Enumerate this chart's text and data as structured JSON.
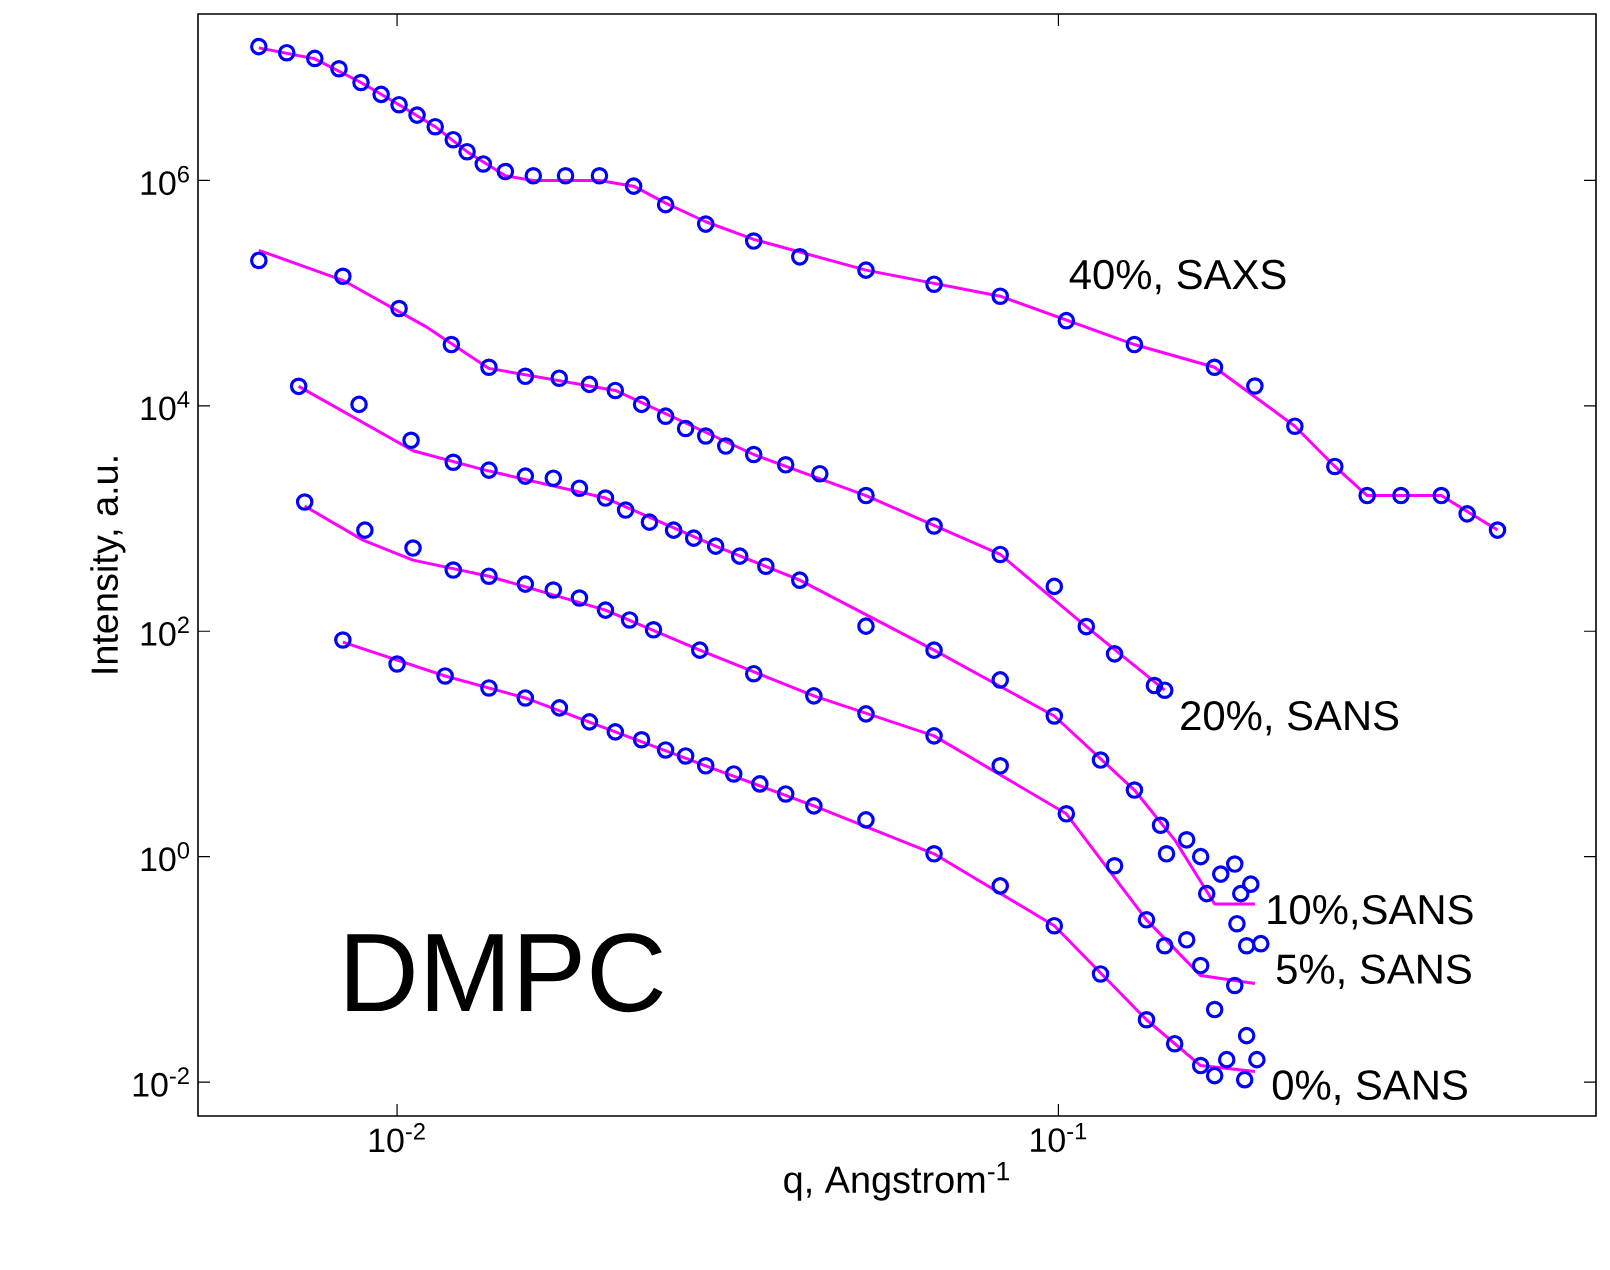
{
  "chart_data": {
    "type": "scatter",
    "xlabel": "q, Angstrom$^{-1}$",
    "ylabel": "Intensity, a.u.",
    "log": "xy",
    "marker": "circle",
    "xlim": [
      0.005,
      0.65
    ],
    "ylim": [
      0.005,
      30000000
    ],
    "xticks": [
      {
        "value": 0.01,
        "label": "10$^{-2}$"
      },
      {
        "value": 0.1,
        "label": "10$^{-1}$"
      }
    ],
    "yticks": [
      {
        "value": 0.01,
        "label": "10$^{-2}$"
      },
      {
        "value": 1,
        "label": "10$^{0}$"
      },
      {
        "value": 100,
        "label": "10$^{2}$"
      },
      {
        "value": 10000,
        "label": "10$^{4}$"
      },
      {
        "value": 1000000,
        "label": "10$^{6}$"
      }
    ],
    "series": [
      {
        "name": "40%, SAXS",
        "color": "#0000ff",
        "x": [
          0.00618,
          0.00681,
          0.00751,
          0.00817,
          0.00882,
          0.00946,
          0.01007,
          0.01072,
          0.01142,
          0.01216,
          0.01276,
          0.0135,
          0.01458,
          0.01607,
          0.01798,
          0.02023,
          0.02279,
          0.02547,
          0.02929,
          0.03462,
          0.04064,
          0.05117,
          0.06486,
          0.08166,
          0.1028,
          0.1303,
          0.1722,
          0.1982,
          0.2278,
          0.2618,
          0.293,
          0.3296,
          0.3793,
          0.415,
          0.4613
        ],
        "values": [
          15400000,
          13600000,
          12100000,
          9800000,
          7400000,
          5800000,
          4700000,
          3800000,
          3000000,
          2300000,
          1800000,
          1400000,
          1200000,
          1100000,
          1100000,
          1100000,
          890000,
          610000,
          410000,
          290000,
          210000,
          160000,
          120000,
          94000,
          57000,
          35000,
          22000,
          15000,
          6600,
          2900,
          1600,
          1600,
          1600,
          1100,
          790
        ]
      },
      {
        "type": "line",
        "marker": "none",
        "color": "#ff00ff",
        "x": [
          0.00618,
          0.00751,
          0.00882,
          0.01007,
          0.01142,
          0.01276,
          0.01458,
          0.01607,
          0.02023,
          0.02279,
          0.02547,
          0.02929,
          0.03462,
          0.05117,
          0.08166,
          0.1303,
          0.1722,
          0.2278,
          0.2618,
          0.293,
          0.3296,
          0.3793,
          0.4613
        ],
        "values": [
          15000000,
          12000000,
          7400000,
          4700000,
          3000000,
          1800000,
          1100000,
          1000000,
          1000000,
          890000,
          630000,
          430000,
          300000,
          160000,
          94000,
          35000,
          22000,
          6600,
          2900,
          1600,
          1600,
          1600,
          790
        ]
      },
      {
        "name": "20%, SANS",
        "color": "#0000ff",
        "x": [
          0.00618,
          0.00828,
          0.01007,
          0.01208,
          0.01377,
          0.01563,
          0.01759,
          0.01954,
          0.02138,
          0.02343,
          0.02547,
          0.02731,
          0.02929,
          0.03141,
          0.03462,
          0.0387,
          0.04357,
          0.05117,
          0.06486,
          0.08166,
          0.09858,
          0.1102,
          0.1216,
          0.1397,
          0.1448
        ],
        "values": [
          195000,
          141000,
          73000,
          35000,
          22000,
          18300,
          17600,
          15500,
          13700,
          10300,
          8100,
          6300,
          5400,
          4400,
          3700,
          3000,
          2500,
          1600,
          860,
          480,
          250,
          110,
          63,
          33,
          30
        ]
      },
      {
        "type": "line",
        "marker": "none",
        "color": "#ff00ff",
        "x": [
          0.00618,
          0.00828,
          0.01102,
          0.01377,
          0.02138,
          0.03462,
          0.05117,
          0.08166,
          0.1102,
          0.1448
        ],
        "values": [
          240000,
          130000,
          51000,
          21500,
          13700,
          3700,
          1600,
          480,
          110,
          30
        ]
      },
      {
        "name": "10%,SANS",
        "color": "#0000ff",
        "x": [
          0.0071,
          0.00876,
          0.0105,
          0.01216,
          0.01377,
          0.01563,
          0.01723,
          0.01887,
          0.02066,
          0.02216,
          0.02408,
          0.02619,
          0.02809,
          0.03032,
          0.03297,
          0.03611,
          0.04064,
          0.05117,
          0.06486,
          0.08166,
          0.09858,
          0.1158,
          0.1303,
          0.1427,
          0.1457,
          0.1563,
          0.1641,
          0.1676,
          0.176,
          0.1848,
          0.1887,
          0.1954
        ],
        "values": [
          14900,
          10300,
          4950,
          3160,
          2690,
          2380,
          2280,
          1860,
          1520,
          1190,
          929,
          789,
          670,
          569,
          464,
          378,
          284,
          111,
          68,
          37,
          17.7,
          7.2,
          3.9,
          1.9,
          1.06,
          1.41,
          1.0,
          0.47,
          0.7,
          0.86,
          0.47,
          0.57
        ]
      },
      {
        "type": "line",
        "marker": "none",
        "color": "#ff00ff",
        "x": [
          0.0071,
          0.01057,
          0.01359,
          0.02066,
          0.03032,
          0.04064,
          0.06486,
          0.09858,
          0.1303,
          0.1499,
          0.1723,
          0.1982
        ],
        "values": [
          14900,
          4000,
          2690,
          1520,
          569,
          284,
          68,
          17.7,
          3.9,
          1.41,
          0.38,
          0.38
        ]
      },
      {
        "name": "5%, SANS",
        "color": "#0000ff",
        "x": [
          0.00725,
          0.00894,
          0.01057,
          0.01216,
          0.01377,
          0.01563,
          0.01723,
          0.01887,
          0.02066,
          0.02247,
          0.02442,
          0.02869,
          0.03462,
          0.04268,
          0.05117,
          0.06486,
          0.08166,
          0.1028,
          0.1216,
          0.1359,
          0.1448,
          0.1563,
          0.1641,
          0.1723,
          0.1848,
          0.1862,
          0.1926,
          0.2023
        ],
        "values": [
          1400,
          789,
          547,
          349,
          308,
          262,
          232,
          197,
          154,
          126,
          103,
          68,
          42,
          26.7,
          18.5,
          11.8,
          6.4,
          2.4,
          0.83,
          0.275,
          0.162,
          0.183,
          0.108,
          0.044,
          0.072,
          0.254,
          0.162,
          0.169
        ]
      },
      {
        "type": "line",
        "marker": "none",
        "color": "#ff00ff",
        "x": [
          0.00725,
          0.00888,
          0.01057,
          0.01377,
          0.02066,
          0.02869,
          0.04268,
          0.06486,
          0.1028,
          0.1359,
          0.1641,
          0.1982
        ],
        "values": [
          1290,
          644,
          428,
          308,
          154,
          68,
          26.7,
          11.8,
          2.4,
          0.275,
          0.088,
          0.075
        ]
      },
      {
        "name": "0%, SANS",
        "color": "#0000ff",
        "x": [
          0.00828,
          0.01,
          0.01182,
          0.01377,
          0.01563,
          0.0176,
          0.01954,
          0.02138,
          0.02343,
          0.02547,
          0.02731,
          0.02929,
          0.03229,
          0.03536,
          0.0387,
          0.04268,
          0.05117,
          0.06486,
          0.08166,
          0.09858,
          0.1158,
          0.1359,
          0.1499,
          0.1641,
          0.1723,
          0.1797,
          0.1913,
          0.1926,
          0.1996
        ],
        "values": [
          83.6,
          51.2,
          40.1,
          31.4,
          25.6,
          20.9,
          15.7,
          12.8,
          10.9,
          8.85,
          7.83,
          6.4,
          5.42,
          4.42,
          3.6,
          2.82,
          2.12,
          1.06,
          0.55,
          0.244,
          0.091,
          0.0357,
          0.0219,
          0.014,
          0.0114,
          0.0158,
          0.0105,
          0.0258,
          0.0158
        ]
      },
      {
        "type": "line",
        "marker": "none",
        "color": "#ff00ff",
        "x": [
          0.00828,
          0.01182,
          0.01563,
          0.02138,
          0.02929,
          0.04268,
          0.06486,
          0.09858,
          0.1359,
          0.1641,
          0.1982
        ],
        "values": [
          80,
          40.1,
          25.6,
          12.8,
          6.4,
          2.82,
          1.06,
          0.244,
          0.0357,
          0.014,
          0.0124
        ]
      }
    ],
    "annotations": [
      "DMPC"
    ]
  }
}
